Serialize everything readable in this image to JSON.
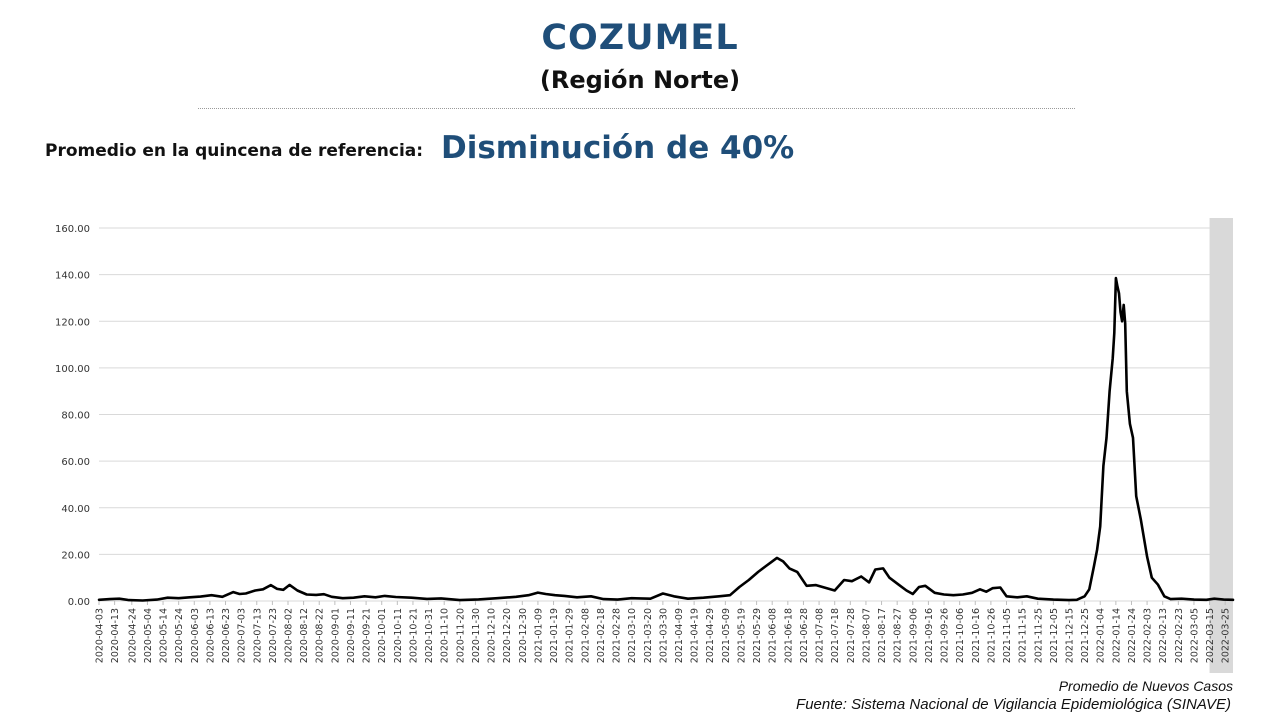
{
  "header": {
    "title": "COZUMEL",
    "subtitle": "(Región Norte)"
  },
  "reference": {
    "label": "Promedio en la quincena de referencia:",
    "value": "Disminución de 40%"
  },
  "footer": {
    "legend": "Promedio de Nuevos Casos",
    "source": "Fuente: Sistema Nacional de Vigilancia Epidemiológica (SINAVE)"
  },
  "colors": {
    "accent": "#1f4e79",
    "line": "#000000",
    "highlight_band": "#d9d9d9",
    "grid": "#d9d9d9"
  },
  "chart_data": {
    "type": "line",
    "title": "",
    "xlabel": "",
    "ylabel": "",
    "ylim": [
      0,
      160
    ],
    "yticks": [
      "0.00",
      "20.00",
      "40.00",
      "60.00",
      "80.00",
      "100.00",
      "120.00",
      "140.00",
      "160.00"
    ],
    "grid": true,
    "x_start": "2020-04-03",
    "x_end": "2022-03-30",
    "x_tick_labels": [
      "2020-04-03",
      "2020-04-13",
      "2020-04-24",
      "2020-05-04",
      "2020-05-14",
      "2020-05-24",
      "2020-06-03",
      "2020-06-13",
      "2020-06-23",
      "2020-07-03",
      "2020-07-13",
      "2020-07-23",
      "2020-08-02",
      "2020-08-12",
      "2020-08-22",
      "2020-09-01",
      "2020-09-11",
      "2020-09-21",
      "2020-10-01",
      "2020-10-11",
      "2020-10-21",
      "2020-10-31",
      "2020-11-10",
      "2020-11-20",
      "2020-11-30",
      "2020-12-10",
      "2020-12-20",
      "2020-12-30",
      "2021-01-09",
      "2021-01-19",
      "2021-01-29",
      "2021-02-08",
      "2021-02-18",
      "2021-02-28",
      "2021-03-10",
      "2021-03-20",
      "2021-03-30",
      "2021-04-09",
      "2021-04-19",
      "2021-04-29",
      "2021-05-09",
      "2021-05-19",
      "2021-05-29",
      "2021-06-08",
      "2021-06-18",
      "2021-06-28",
      "2021-07-08",
      "2021-07-18",
      "2021-07-28",
      "2021-08-07",
      "2021-08-17",
      "2021-08-27",
      "2021-09-06",
      "2021-09-16",
      "2021-09-26",
      "2021-10-06",
      "2021-10-16",
      "2021-10-26",
      "2021-11-05",
      "2021-11-15",
      "2021-11-25",
      "2021-12-05",
      "2021-12-15",
      "2021-12-25",
      "2022-01-04",
      "2022-01-14",
      "2022-01-24",
      "2022-02-03",
      "2022-02-13",
      "2022-02-23",
      "2022-03-05",
      "2022-03-15",
      "2022-03-25"
    ],
    "highlight_range": [
      "2022-03-15",
      "2022-03-30"
    ],
    "series": [
      {
        "points": [
          [
            "2020-04-03",
            0.5
          ],
          [
            "2020-04-10",
            0.8
          ],
          [
            "2020-04-16",
            1.0
          ],
          [
            "2020-04-22",
            0.4
          ],
          [
            "2020-05-01",
            0.2
          ],
          [
            "2020-05-10",
            0.6
          ],
          [
            "2020-05-17",
            1.4
          ],
          [
            "2020-05-24",
            1.2
          ],
          [
            "2020-05-31",
            1.6
          ],
          [
            "2020-06-07",
            1.9
          ],
          [
            "2020-06-14",
            2.5
          ],
          [
            "2020-06-21",
            1.8
          ],
          [
            "2020-06-28",
            3.8
          ],
          [
            "2020-07-02",
            3.0
          ],
          [
            "2020-07-06",
            3.2
          ],
          [
            "2020-07-12",
            4.5
          ],
          [
            "2020-07-17",
            5.0
          ],
          [
            "2020-07-22",
            6.8
          ],
          [
            "2020-07-26",
            5.2
          ],
          [
            "2020-07-30",
            4.8
          ],
          [
            "2020-08-03",
            6.9
          ],
          [
            "2020-08-08",
            4.5
          ],
          [
            "2020-08-14",
            2.8
          ],
          [
            "2020-08-20",
            2.6
          ],
          [
            "2020-08-25",
            2.9
          ],
          [
            "2020-08-30",
            1.8
          ],
          [
            "2020-09-06",
            1.2
          ],
          [
            "2020-09-13",
            1.4
          ],
          [
            "2020-09-20",
            2.0
          ],
          [
            "2020-09-27",
            1.6
          ],
          [
            "2020-10-03",
            2.2
          ],
          [
            "2020-10-10",
            1.7
          ],
          [
            "2020-10-20",
            1.4
          ],
          [
            "2020-10-30",
            0.9
          ],
          [
            "2020-11-08",
            1.1
          ],
          [
            "2020-11-20",
            0.4
          ],
          [
            "2020-12-02",
            0.7
          ],
          [
            "2020-12-14",
            1.2
          ],
          [
            "2020-12-26",
            1.8
          ],
          [
            "2021-01-03",
            2.5
          ],
          [
            "2021-01-09",
            3.6
          ],
          [
            "2021-01-14",
            3.0
          ],
          [
            "2021-01-20",
            2.5
          ],
          [
            "2021-01-26",
            2.2
          ],
          [
            "2021-02-03",
            1.6
          ],
          [
            "2021-02-12",
            2.0
          ],
          [
            "2021-02-20",
            0.8
          ],
          [
            "2021-03-01",
            0.6
          ],
          [
            "2021-03-10",
            1.2
          ],
          [
            "2021-03-22",
            1.0
          ],
          [
            "2021-03-30",
            3.2
          ],
          [
            "2021-04-06",
            2.0
          ],
          [
            "2021-04-15",
            1.0
          ],
          [
            "2021-04-25",
            1.4
          ],
          [
            "2021-05-05",
            2.0
          ],
          [
            "2021-05-12",
            2.5
          ],
          [
            "2021-05-18",
            6.0
          ],
          [
            "2021-05-24",
            9.0
          ],
          [
            "2021-05-30",
            12.5
          ],
          [
            "2021-06-04",
            15.0
          ],
          [
            "2021-06-08",
            17.0
          ],
          [
            "2021-06-11",
            18.5
          ],
          [
            "2021-06-15",
            17.0
          ],
          [
            "2021-06-19",
            14.0
          ],
          [
            "2021-06-24",
            12.5
          ],
          [
            "2021-06-30",
            6.5
          ],
          [
            "2021-07-06",
            6.8
          ],
          [
            "2021-07-13",
            5.5
          ],
          [
            "2021-07-18",
            4.5
          ],
          [
            "2021-07-24",
            9.0
          ],
          [
            "2021-07-29",
            8.5
          ],
          [
            "2021-08-04",
            10.5
          ],
          [
            "2021-08-09",
            8.0
          ],
          [
            "2021-08-13",
            13.5
          ],
          [
            "2021-08-18",
            14.0
          ],
          [
            "2021-08-22",
            10.0
          ],
          [
            "2021-08-28",
            7.0
          ],
          [
            "2021-09-02",
            4.5
          ],
          [
            "2021-09-06",
            3.0
          ],
          [
            "2021-09-10",
            6.0
          ],
          [
            "2021-09-14",
            6.5
          ],
          [
            "2021-09-20",
            3.5
          ],
          [
            "2021-09-26",
            2.8
          ],
          [
            "2021-10-02",
            2.5
          ],
          [
            "2021-10-08",
            2.8
          ],
          [
            "2021-10-14",
            3.5
          ],
          [
            "2021-10-19",
            5.0
          ],
          [
            "2021-10-23",
            4.0
          ],
          [
            "2021-10-27",
            5.5
          ],
          [
            "2021-11-01",
            5.8
          ],
          [
            "2021-11-05",
            2.0
          ],
          [
            "2021-11-12",
            1.6
          ],
          [
            "2021-11-18",
            2.0
          ],
          [
            "2021-11-25",
            1.0
          ],
          [
            "2021-12-05",
            0.6
          ],
          [
            "2021-12-15",
            0.4
          ],
          [
            "2021-12-20",
            0.5
          ],
          [
            "2021-12-25",
            2.0
          ],
          [
            "2021-12-28",
            5.0
          ],
          [
            "2021-12-31",
            15.0
          ],
          [
            "2022-01-02",
            22.0
          ],
          [
            "2022-01-04",
            32.0
          ],
          [
            "2022-01-06",
            58.0
          ],
          [
            "2022-01-08",
            70.0
          ],
          [
            "2022-01-10",
            90.0
          ],
          [
            "2022-01-12",
            104.0
          ],
          [
            "2022-01-13",
            115.0
          ],
          [
            "2022-01-14",
            138.5
          ],
          [
            "2022-01-15",
            135.0
          ],
          [
            "2022-01-16",
            132.0
          ],
          [
            "2022-01-17",
            124.0
          ],
          [
            "2022-01-18",
            120.0
          ],
          [
            "2022-01-19",
            127.0
          ],
          [
            "2022-01-20",
            119.0
          ],
          [
            "2022-01-21",
            90.0
          ],
          [
            "2022-01-23",
            76.0
          ],
          [
            "2022-01-25",
            70.0
          ],
          [
            "2022-01-27",
            45.0
          ],
          [
            "2022-01-30",
            35.0
          ],
          [
            "2022-02-03",
            19.0
          ],
          [
            "2022-02-06",
            10.0
          ],
          [
            "2022-02-10",
            7.0
          ],
          [
            "2022-02-14",
            2.0
          ],
          [
            "2022-02-18",
            0.8
          ],
          [
            "2022-02-25",
            1.0
          ],
          [
            "2022-03-05",
            0.6
          ],
          [
            "2022-03-13",
            0.5
          ],
          [
            "2022-03-18",
            1.0
          ],
          [
            "2022-03-24",
            0.6
          ],
          [
            "2022-03-30",
            0.5
          ]
        ]
      }
    ]
  }
}
